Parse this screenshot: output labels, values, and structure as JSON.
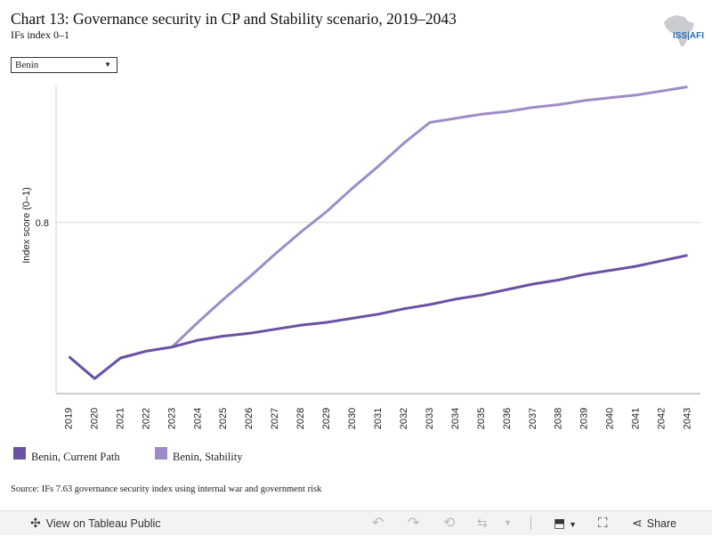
{
  "header": {
    "title": "Chart 13: Governance security in CP and Stability scenario, 2019–2043",
    "subtitle": "IFs index 0–1",
    "logo_text": "ISS|AFI"
  },
  "filter": {
    "selected": "Benin"
  },
  "colors": {
    "current_path": "#6a51a3",
    "stability": "#9e8cc8",
    "gridline": "#d6d6d6",
    "axis": "#999999"
  },
  "chart_data": {
    "type": "line",
    "ylabel": "Index score (0–1)",
    "xlabel": "",
    "ylim": [
      0.675,
      0.9
    ],
    "yticks": [
      0.8
    ],
    "ytick_labels": [
      "0.8"
    ],
    "grid": true,
    "legend_position": "bottom",
    "x": [
      "2019",
      "2020",
      "2021",
      "2022",
      "2023",
      "2024",
      "2025",
      "2026",
      "2027",
      "2028",
      "2029",
      "2030",
      "2031",
      "2032",
      "2033",
      "2034",
      "2035",
      "2036",
      "2037",
      "2038",
      "2039",
      "2040",
      "2041",
      "2042",
      "2043"
    ],
    "series": [
      {
        "name": "Benin, Current Path",
        "color": "#6a51a3",
        "values": [
          0.702,
          0.686,
          0.701,
          0.706,
          0.709,
          0.714,
          0.717,
          0.719,
          0.722,
          0.725,
          0.727,
          0.73,
          0.733,
          0.737,
          0.74,
          0.744,
          0.747,
          0.751,
          0.755,
          0.758,
          0.762,
          0.765,
          0.768,
          0.772,
          0.776
        ]
      },
      {
        "name": "Benin, Stability",
        "color": "#9e8cc8",
        "values": [
          0.702,
          0.686,
          0.701,
          0.706,
          0.709,
          0.727,
          0.744,
          0.76,
          0.777,
          0.793,
          0.808,
          0.825,
          0.841,
          0.858,
          0.873,
          0.876,
          0.879,
          0.881,
          0.884,
          0.886,
          0.889,
          0.891,
          0.893,
          0.896,
          0.899
        ]
      }
    ]
  },
  "source": "Source: IFs 7.63 governance security index using internal war and government risk",
  "toolbar": {
    "view_label": "View on Tableau Public",
    "share_label": "Share"
  }
}
